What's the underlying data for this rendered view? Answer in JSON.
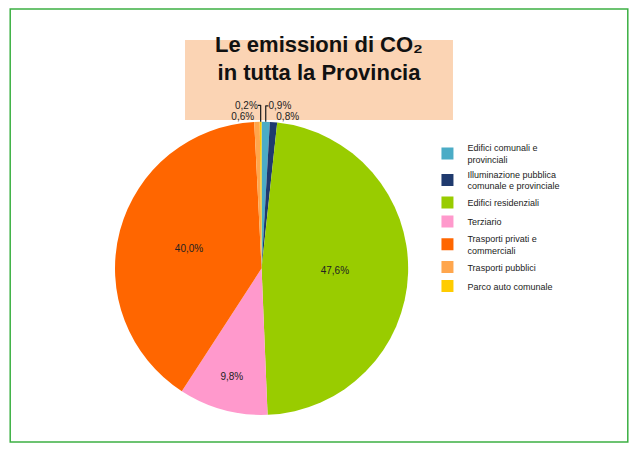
{
  "chart_data": {
    "type": "pie",
    "title": "Le emissioni di CO₂ in tutta la Provincia",
    "categories": [
      "Edifici comunali e provinciali",
      "Illuminazione pubblica comunale e provinciale",
      "Edifici residenziali",
      "Terziario",
      "Trasporti privati e commerciali",
      "Trasporti pubblici",
      "Parco auto comunale"
    ],
    "values": [
      0.9,
      0.8,
      47.6,
      9.8,
      40.0,
      0.6,
      0.2
    ],
    "value_labels": [
      "0,9%",
      "0,8%",
      "47,6%",
      "9,8%",
      "40,0%",
      "0,6%",
      "0,2%"
    ],
    "colors": [
      "#4bacc6",
      "#1f3a6e",
      "#99cc00",
      "#ff99cc",
      "#ff6600",
      "#ffa64d",
      "#ffcc00"
    ],
    "data_labels": true,
    "legend": "right"
  }
}
